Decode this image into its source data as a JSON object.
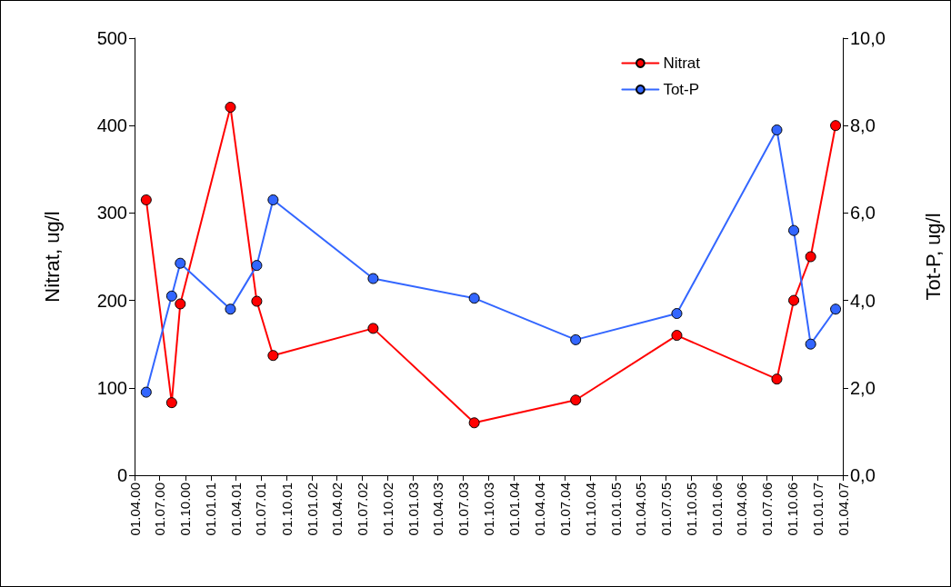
{
  "chart_data": {
    "type": "line",
    "ylabel": "Nitrat, ug/l",
    "y2label": "Tot-P, ug/l",
    "x": [
      "2000-05-13",
      "2000-08-13",
      "2000-09-13",
      "2001-03-13",
      "2001-06-16",
      "2001-08-14",
      "2002-08-10",
      "2003-08-10",
      "2004-08-10",
      "2005-08-10",
      "2006-08-06",
      "2006-10-06",
      "2006-12-06",
      "2007-03-06"
    ],
    "series": [
      {
        "name": "Nitrat",
        "color": "#ff0000",
        "values": [
          315,
          83,
          196,
          421,
          199,
          137,
          168,
          60,
          86,
          160,
          110,
          200,
          250,
          400
        ]
      },
      {
        "name": "Tot-P",
        "color": "#3366ff",
        "axis": "y2",
        "values": [
          1.9,
          4.1,
          4.85,
          3.8,
          4.8,
          6.3,
          4.5,
          4.05,
          3.1,
          3.7,
          7.9,
          5.6,
          3.0,
          3.8
        ]
      }
    ],
    "xlim": [
      "2000-04-01",
      "2007-04-01"
    ],
    "xticks": [
      {
        "value": "2000-04-01",
        "label": "01.04.00"
      },
      {
        "value": "2000-07-01",
        "label": "01.07.00"
      },
      {
        "value": "2000-10-01",
        "label": "01.10.00"
      },
      {
        "value": "2001-01-01",
        "label": "01.01.01"
      },
      {
        "value": "2001-04-01",
        "label": "01.04.01"
      },
      {
        "value": "2001-07-01",
        "label": "01.07.01"
      },
      {
        "value": "2001-10-01",
        "label": "01.10.01"
      },
      {
        "value": "2002-01-01",
        "label": "01.01.02"
      },
      {
        "value": "2002-04-01",
        "label": "01.04.02"
      },
      {
        "value": "2002-07-01",
        "label": "01.07.02"
      },
      {
        "value": "2002-10-01",
        "label": "01.10.02"
      },
      {
        "value": "2003-01-01",
        "label": "01.01.03"
      },
      {
        "value": "2003-04-01",
        "label": "01.04.03"
      },
      {
        "value": "2003-07-01",
        "label": "01.07.03"
      },
      {
        "value": "2003-10-01",
        "label": "01.10.03"
      },
      {
        "value": "2004-01-01",
        "label": "01.01.04"
      },
      {
        "value": "2004-04-01",
        "label": "01.04.04"
      },
      {
        "value": "2004-07-01",
        "label": "01.07.04"
      },
      {
        "value": "2004-10-01",
        "label": "01.10.04"
      },
      {
        "value": "2005-01-01",
        "label": "01.01.05"
      },
      {
        "value": "2005-04-01",
        "label": "01.04.05"
      },
      {
        "value": "2005-07-01",
        "label": "01.07.05"
      },
      {
        "value": "2005-10-01",
        "label": "01.10.05"
      },
      {
        "value": "2006-01-01",
        "label": "01.01.06"
      },
      {
        "value": "2006-04-01",
        "label": "01.04.06"
      },
      {
        "value": "2006-07-01",
        "label": "01.07.06"
      },
      {
        "value": "2006-10-01",
        "label": "01.10.06"
      },
      {
        "value": "2007-01-01",
        "label": "01.01.07"
      },
      {
        "value": "2007-04-01",
        "label": "01.04.07"
      }
    ],
    "ylim": [
      0,
      500
    ],
    "yticks": [
      0,
      100,
      200,
      300,
      400,
      500
    ],
    "y2lim": [
      0,
      10
    ],
    "y2ticks": [
      {
        "value": 0,
        "label": "0,0"
      },
      {
        "value": 2,
        "label": "2,0"
      },
      {
        "value": 4,
        "label": "4,0"
      },
      {
        "value": 6,
        "label": "6,0"
      },
      {
        "value": 8,
        "label": "8,0"
      },
      {
        "value": 10,
        "label": "10,0"
      }
    ],
    "grid": false,
    "legend": "top right",
    "marker": "circle",
    "line_style": "solid"
  }
}
